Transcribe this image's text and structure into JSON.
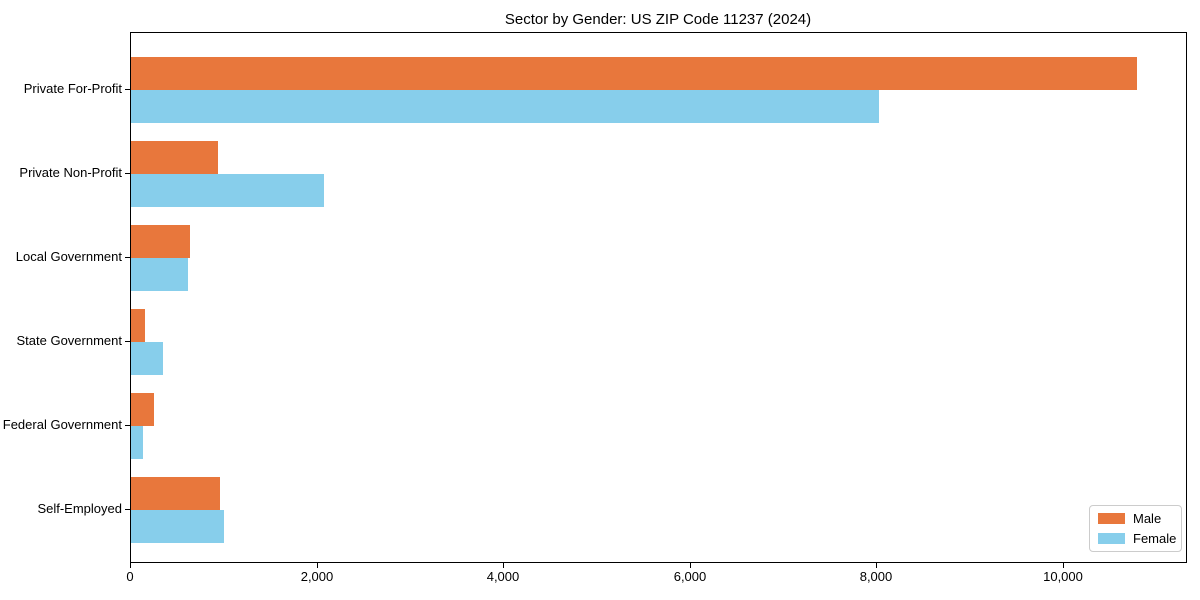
{
  "chart_data": {
    "type": "bar",
    "orientation": "horizontal",
    "title": "Sector by Gender: US ZIP Code 11237 (2024)",
    "categories": [
      "Private For-Profit",
      "Private Non-Profit",
      "Local Government",
      "State Government",
      "Federal Government",
      "Self-Employed"
    ],
    "series": [
      {
        "name": "Male",
        "color": "#E8773C",
        "values": [
          10780,
          930,
          630,
          150,
          250,
          950
        ]
      },
      {
        "name": "Female",
        "color": "#87CEEB",
        "values": [
          8020,
          2070,
          610,
          340,
          130,
          1000
        ]
      }
    ],
    "xlabel": "",
    "ylabel": "",
    "xlim": [
      0,
      11320
    ],
    "x_ticks": [
      0,
      2000,
      4000,
      6000,
      8000,
      10000
    ],
    "x_tick_labels": [
      "0",
      "2,000",
      "4,000",
      "6,000",
      "8,000",
      "10,000"
    ],
    "grid": false,
    "legend": {
      "position": "lower right",
      "entries": [
        "Male",
        "Female"
      ]
    },
    "plot_border_color": "#000000",
    "background_color": "#ffffff"
  }
}
